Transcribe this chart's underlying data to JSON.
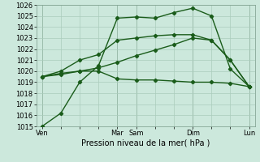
{
  "xlabel": "Pression niveau de la mer( hPa )",
  "background_color": "#cce8dc",
  "grid_color": "#aaccbb",
  "line_color": "#1a5c1a",
  "vline_color": "#7a9a8a",
  "ylim": [
    1015,
    1026
  ],
  "yticks": [
    1015,
    1016,
    1017,
    1018,
    1019,
    1020,
    1021,
    1022,
    1023,
    1024,
    1025,
    1026
  ],
  "xtick_labels": [
    "Ven",
    "",
    "",
    "",
    "Mar",
    "Sam",
    "",
    "",
    "Dim",
    "",
    "",
    "Lun"
  ],
  "xtick_positions": [
    0,
    1,
    2,
    3,
    4,
    5,
    6,
    7,
    8,
    9,
    10,
    11
  ],
  "vlines": [
    0,
    4,
    5,
    8,
    11
  ],
  "series": [
    [
      1015.0,
      1016.2,
      1019.0,
      1020.5,
      1024.8,
      1024.9,
      1024.8,
      1025.3,
      1025.7,
      1025.0,
      1020.2,
      1018.6
    ],
    [
      1019.5,
      1019.7,
      1020.0,
      1020.0,
      1019.3,
      1019.2,
      1019.2,
      1019.1,
      1019.0,
      1019.0,
      1018.9,
      1018.6
    ],
    [
      1019.5,
      1019.8,
      1020.0,
      1020.3,
      1020.8,
      1021.4,
      1021.9,
      1022.4,
      1023.0,
      1022.8,
      1021.0,
      1018.6
    ],
    [
      1019.5,
      1020.0,
      1021.0,
      1021.5,
      1022.8,
      1023.0,
      1023.2,
      1023.3,
      1023.3,
      1022.8,
      1021.0,
      1018.6
    ]
  ],
  "marker": "D",
  "markersize": 2.2,
  "linewidth": 1.0,
  "tick_fontsize": 6.0,
  "xlabel_fontsize": 7.0
}
